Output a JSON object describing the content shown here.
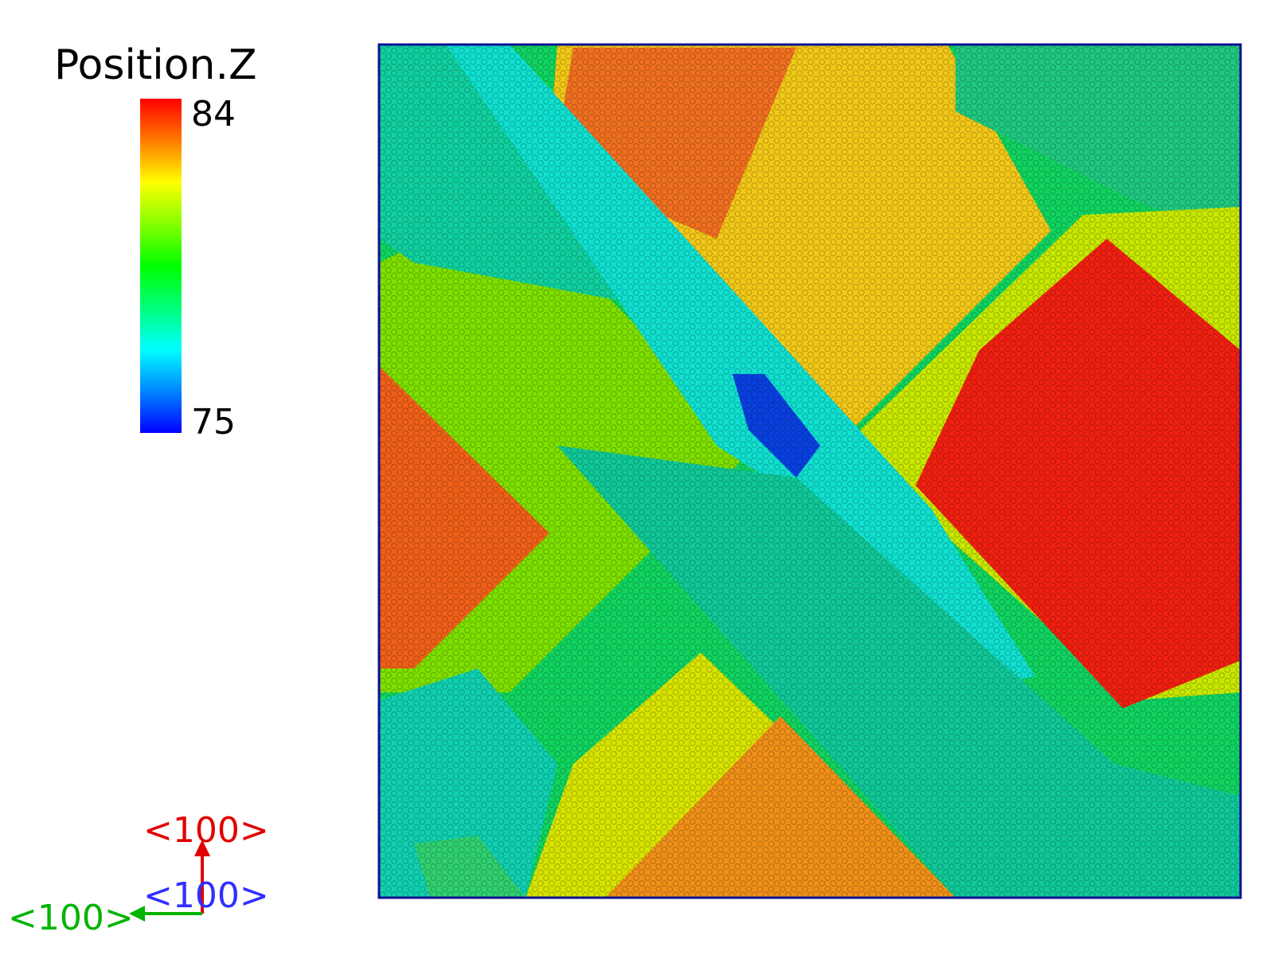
{
  "colorbar": {
    "title": "Position.Z",
    "max_label": "84",
    "min_label": "75",
    "max_value": 84,
    "min_value": 75,
    "colormap": [
      "#ff0000",
      "#ff8000",
      "#ffff00",
      "#80ff00",
      "#00ff00",
      "#00ff80",
      "#00ffff",
      "#0080ff",
      "#0000ff"
    ]
  },
  "axes": {
    "vertical_label": "<100>",
    "out_of_plane_label": "<100>",
    "horizontal_label": "<100>",
    "vertical_color": "#e00000",
    "out_of_plane_color": "#3030ff",
    "horizontal_color": "#00b400"
  },
  "view": {
    "type": "atomic surface height map",
    "colored_by": "Position.Z"
  }
}
